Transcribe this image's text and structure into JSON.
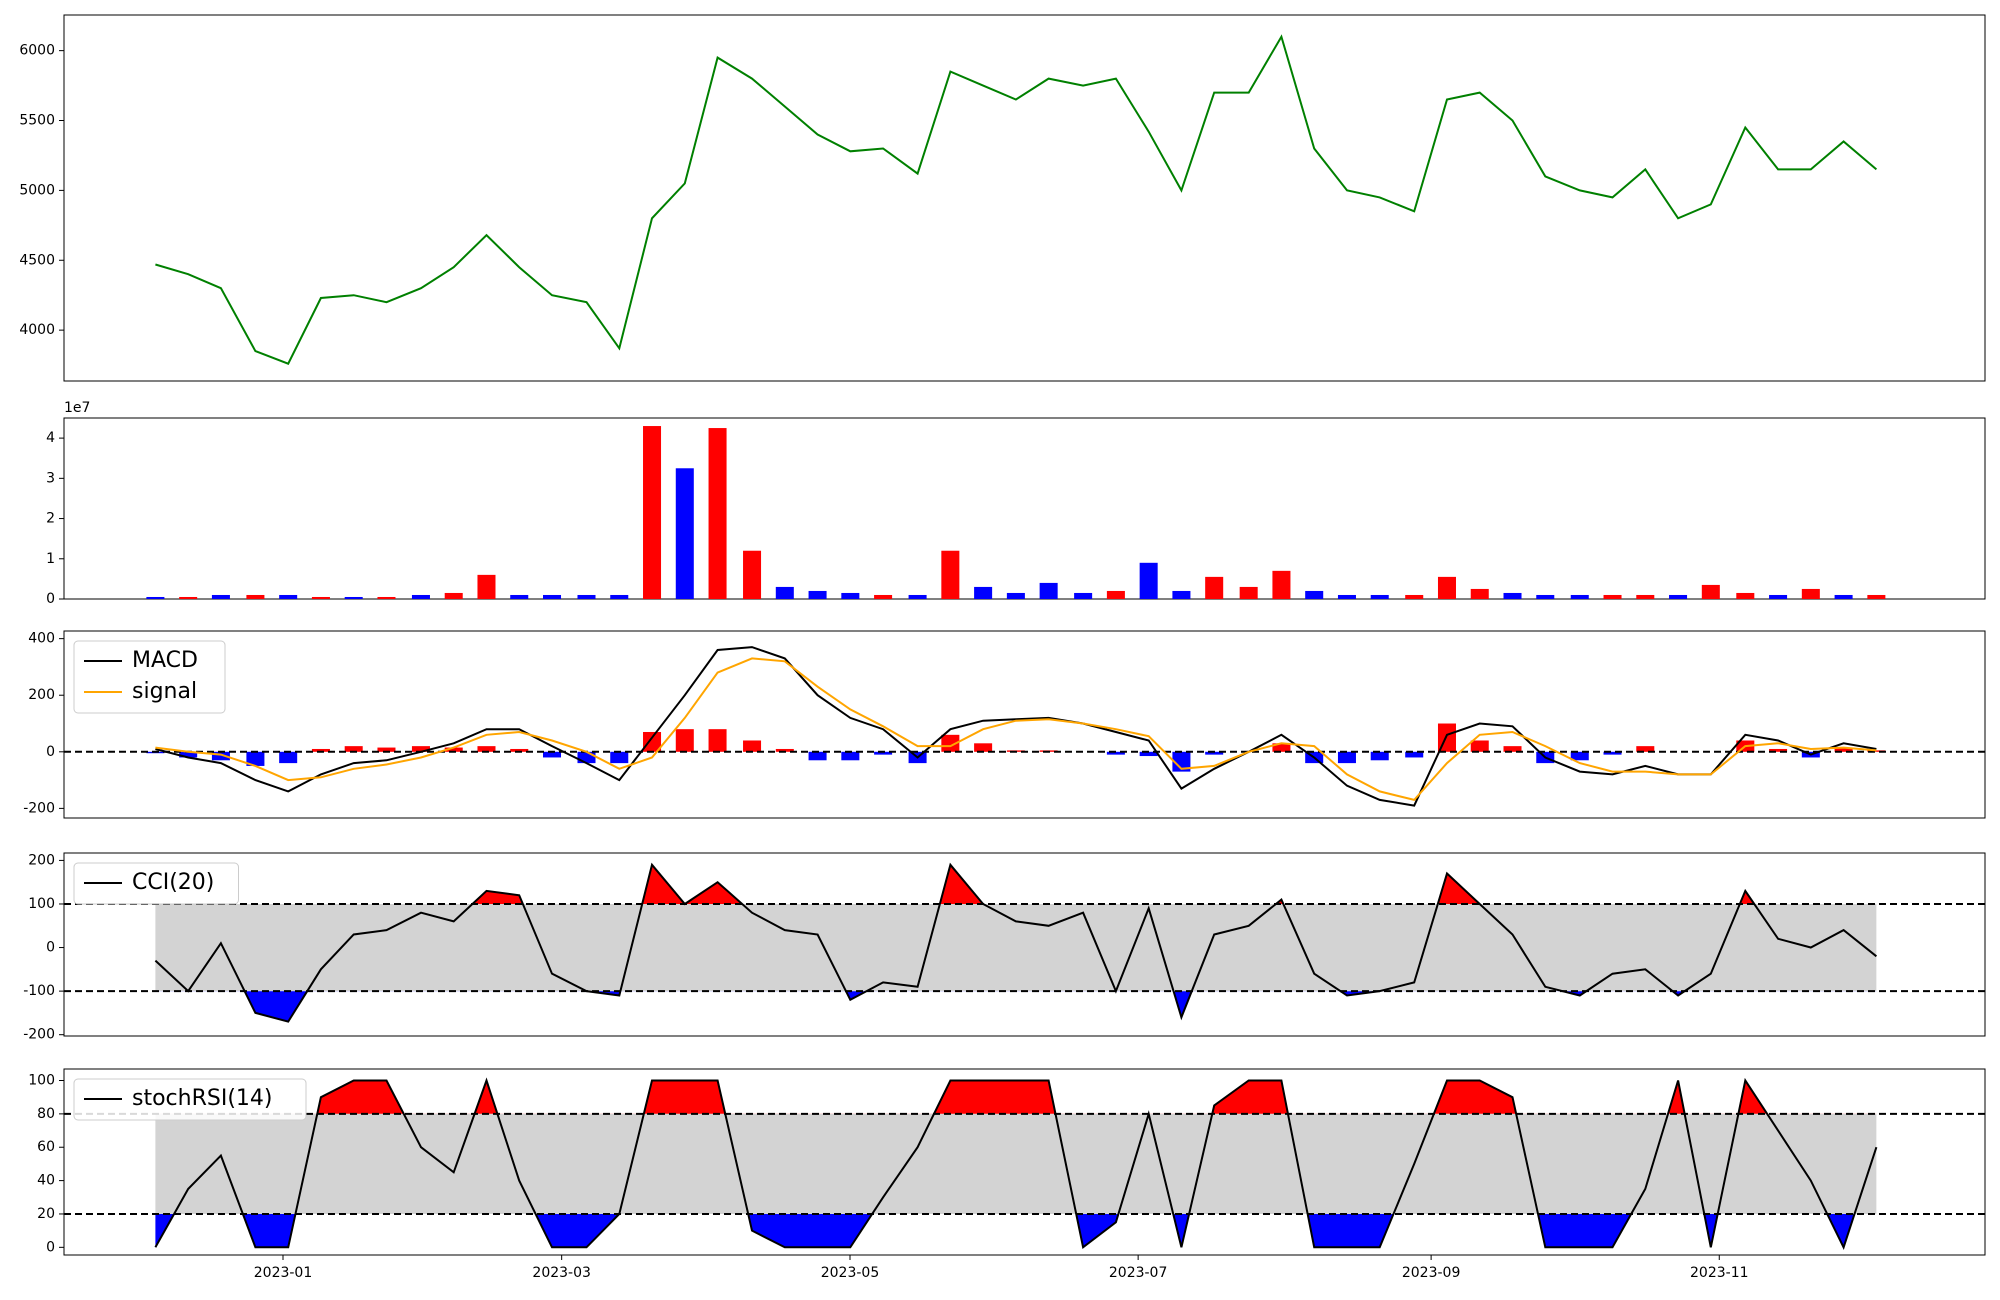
{
  "chart_data": [
    {
      "type": "line",
      "color": "green",
      "x": [
        2022.926,
        2022.945,
        2022.964,
        2022.984,
        2023.003,
        2023.022,
        2023.041,
        2023.06,
        2023.08,
        2023.099,
        2023.118,
        2023.137,
        2023.156,
        2023.176,
        2023.195,
        2023.214,
        2023.233,
        2023.252,
        2023.272,
        2023.291,
        2023.31,
        2023.329,
        2023.348,
        2023.368,
        2023.387,
        2023.406,
        2023.425,
        2023.444,
        2023.464,
        2023.483,
        2023.502,
        2023.521,
        2023.54,
        2023.56,
        2023.579,
        2023.598,
        2023.617,
        2023.636,
        2023.656,
        2023.675,
        2023.694,
        2023.713,
        2023.732,
        2023.752,
        2023.771,
        2023.79,
        2023.809,
        2023.828,
        2023.848,
        2023.867,
        2023.886,
        2023.905,
        2023.924
      ],
      "values": [
        4470,
        4400,
        4300,
        3850,
        3760,
        4230,
        4250,
        4200,
        4300,
        4450,
        4680,
        4450,
        4250,
        4200,
        3870,
        4800,
        5050,
        5950,
        5800,
        5600,
        5400,
        5280,
        5300,
        5120,
        5850,
        5750,
        5650,
        5800,
        5750,
        5800,
        5420,
        5000,
        5700,
        5700,
        6100,
        5300,
        5000,
        4950,
        4850,
        5650,
        5700,
        5500,
        5100,
        5000,
        4950,
        5150,
        4800,
        4900,
        5450,
        5150,
        5150,
        5350,
        5150
      ],
      "xlim": [
        2022.873,
        2023.987
      ],
      "ylim": [
        3636,
        6255
      ],
      "yticks": [
        4000,
        4500,
        5000,
        5500,
        6000
      ]
    },
    {
      "type": "bar",
      "offset_label": "1e7",
      "x": [
        2022.926,
        2022.945,
        2022.964,
        2022.984,
        2023.003,
        2023.022,
        2023.041,
        2023.06,
        2023.08,
        2023.099,
        2023.118,
        2023.137,
        2023.156,
        2023.176,
        2023.195,
        2023.214,
        2023.233,
        2023.252,
        2023.272,
        2023.291,
        2023.31,
        2023.329,
        2023.348,
        2023.368,
        2023.387,
        2023.406,
        2023.425,
        2023.444,
        2023.464,
        2023.483,
        2023.502,
        2023.521,
        2023.54,
        2023.56,
        2023.579,
        2023.598,
        2023.617,
        2023.636,
        2023.656,
        2023.675,
        2023.694,
        2023.713,
        2023.732,
        2023.752,
        2023.771,
        2023.79,
        2023.809,
        2023.828,
        2023.848,
        2023.867,
        2023.886,
        2023.905,
        2023.924
      ],
      "values": [
        0.05,
        0.05,
        0.1,
        0.1,
        0.1,
        0.05,
        0.05,
        0.05,
        0.1,
        0.15,
        0.6,
        0.1,
        0.1,
        0.1,
        0.1,
        4.3,
        3.25,
        4.25,
        1.2,
        0.3,
        0.2,
        0.15,
        0.1,
        0.1,
        1.2,
        0.3,
        0.15,
        0.4,
        0.15,
        0.2,
        0.9,
        0.2,
        0.55,
        0.3,
        0.7,
        0.2,
        0.1,
        0.1,
        0.1,
        0.55,
        0.25,
        0.15,
        0.1,
        0.1,
        0.1,
        0.1,
        0.1,
        0.35,
        0.15,
        0.1,
        0.25,
        0.1,
        0.1
      ],
      "colors": [
        "blue",
        "red",
        "blue",
        "red",
        "blue",
        "red",
        "blue",
        "red",
        "blue",
        "red",
        "red",
        "blue",
        "blue",
        "blue",
        "blue",
        "red",
        "blue",
        "red",
        "red",
        "blue",
        "blue",
        "blue",
        "red",
        "blue",
        "red",
        "blue",
        "blue",
        "blue",
        "blue",
        "red",
        "blue",
        "blue",
        "red",
        "red",
        "red",
        "blue",
        "blue",
        "blue",
        "red",
        "red",
        "red",
        "blue",
        "blue",
        "blue",
        "red",
        "red",
        "blue",
        "red",
        "red",
        "blue",
        "red",
        "blue",
        "red"
      ],
      "xlim": [
        2022.873,
        2023.987
      ],
      "ylim": [
        0,
        4.5
      ],
      "yticks": [
        0,
        1,
        2,
        3,
        4
      ]
    },
    {
      "type": "macd",
      "legend": "upper left",
      "x": [
        2022.926,
        2022.945,
        2022.964,
        2022.984,
        2023.003,
        2023.022,
        2023.041,
        2023.06,
        2023.08,
        2023.099,
        2023.118,
        2023.137,
        2023.156,
        2023.176,
        2023.195,
        2023.214,
        2023.233,
        2023.252,
        2023.272,
        2023.291,
        2023.31,
        2023.329,
        2023.348,
        2023.368,
        2023.387,
        2023.406,
        2023.425,
        2023.444,
        2023.464,
        2023.483,
        2023.502,
        2023.521,
        2023.54,
        2023.56,
        2023.579,
        2023.598,
        2023.617,
        2023.636,
        2023.656,
        2023.675,
        2023.694,
        2023.713,
        2023.732,
        2023.752,
        2023.771,
        2023.79,
        2023.809,
        2023.828,
        2023.848,
        2023.867,
        2023.886,
        2023.905,
        2023.924
      ],
      "series": [
        {
          "name": "MACD",
          "color": "black",
          "values": [
            10,
            -20,
            -40,
            -100,
            -140,
            -80,
            -40,
            -30,
            0,
            30,
            80,
            80,
            20,
            -40,
            -100,
            50,
            200,
            360,
            370,
            330,
            200,
            120,
            80,
            -20,
            80,
            110,
            115,
            120,
            100,
            70,
            40,
            -130,
            -60,
            0,
            60,
            -20,
            -120,
            -170,
            -190,
            60,
            100,
            90,
            -20,
            -70,
            -80,
            -50,
            -80,
            -80,
            60,
            40,
            -10,
            30,
            10
          ]
        },
        {
          "name": "signal",
          "color": "orange",
          "values": [
            15,
            0,
            -10,
            -50,
            -100,
            -90,
            -60,
            -45,
            -20,
            15,
            60,
            70,
            40,
            0,
            -60,
            -20,
            120,
            280,
            330,
            320,
            230,
            150,
            90,
            20,
            20,
            80,
            110,
            115,
            100,
            80,
            55,
            -60,
            -50,
            0,
            30,
            20,
            -80,
            -140,
            -170,
            -40,
            60,
            70,
            20,
            -40,
            -70,
            -70,
            -80,
            -80,
            20,
            30,
            10,
            15,
            5
          ]
        }
      ],
      "histogram": {
        "up_color": "red",
        "down_color": "blue",
        "values": [
          -5,
          -20,
          -30,
          -50,
          -40,
          10,
          20,
          15,
          20,
          15,
          20,
          10,
          -20,
          -40,
          -40,
          70,
          80,
          80,
          40,
          10,
          -30,
          -30,
          -10,
          -40,
          60,
          30,
          5,
          5,
          0,
          -10,
          -15,
          -70,
          -10,
          0,
          30,
          -40,
          -40,
          -30,
          -20,
          100,
          40,
          20,
          -40,
          -30,
          -10,
          20,
          0,
          0,
          40,
          10,
          -20,
          15,
          5
        ]
      },
      "hlines": [
        0
      ],
      "xlim": [
        2022.873,
        2023.987
      ],
      "ylim": [
        -234,
        427
      ],
      "yticks": [
        -200,
        0,
        200,
        400
      ]
    },
    {
      "type": "oscillator",
      "legend": "upper left",
      "band_color": "lightgray",
      "above_color": "red",
      "below_color": "blue",
      "x": [
        2022.926,
        2022.945,
        2022.964,
        2022.984,
        2023.003,
        2023.022,
        2023.041,
        2023.06,
        2023.08,
        2023.099,
        2023.118,
        2023.137,
        2023.156,
        2023.176,
        2023.195,
        2023.214,
        2023.233,
        2023.252,
        2023.272,
        2023.291,
        2023.31,
        2023.329,
        2023.348,
        2023.368,
        2023.387,
        2023.406,
        2023.425,
        2023.444,
        2023.464,
        2023.483,
        2023.502,
        2023.521,
        2023.54,
        2023.56,
        2023.579,
        2023.598,
        2023.617,
        2023.636,
        2023.656,
        2023.675,
        2023.694,
        2023.713,
        2023.732,
        2023.752,
        2023.771,
        2023.79,
        2023.809,
        2023.828,
        2023.848,
        2023.867,
        2023.886,
        2023.905,
        2023.924
      ],
      "series": [
        {
          "name": "CCI(20)",
          "color": "black",
          "values": [
            -30,
            -100,
            10,
            -150,
            -170,
            -50,
            30,
            40,
            80,
            60,
            130,
            120,
            -60,
            -100,
            -110,
            190,
            100,
            150,
            80,
            40,
            30,
            -120,
            -80,
            -90,
            190,
            100,
            60,
            50,
            80,
            -100,
            90,
            -160,
            30,
            50,
            110,
            -60,
            -110,
            -100,
            -80,
            170,
            100,
            30,
            -90,
            -110,
            -60,
            -50,
            -110,
            -60,
            130,
            20,
            0,
            40,
            -20
          ]
        }
      ],
      "hlines": [
        -100,
        100
      ],
      "xlim": [
        2022.873,
        2023.987
      ],
      "ylim": [
        -203,
        217
      ],
      "yticks": [
        -200,
        -100,
        0,
        100,
        200
      ]
    },
    {
      "type": "oscillator",
      "legend": "upper left",
      "band_color": "lightgray",
      "above_color": "red",
      "below_color": "blue",
      "x": [
        2022.926,
        2022.945,
        2022.964,
        2022.984,
        2023.003,
        2023.022,
        2023.041,
        2023.06,
        2023.08,
        2023.099,
        2023.118,
        2023.137,
        2023.156,
        2023.176,
        2023.195,
        2023.214,
        2023.233,
        2023.252,
        2023.272,
        2023.291,
        2023.31,
        2023.329,
        2023.348,
        2023.368,
        2023.387,
        2023.406,
        2023.425,
        2023.444,
        2023.464,
        2023.483,
        2023.502,
        2023.521,
        2023.54,
        2023.56,
        2023.579,
        2023.598,
        2023.617,
        2023.636,
        2023.656,
        2023.675,
        2023.694,
        2023.713,
        2023.732,
        2023.752,
        2023.771,
        2023.79,
        2023.809,
        2023.828,
        2023.848,
        2023.867,
        2023.886,
        2023.905,
        2023.924
      ],
      "series": [
        {
          "name": "stochRSI(14)",
          "color": "black",
          "values": [
            0,
            35,
            55,
            0,
            0,
            90,
            100,
            100,
            60,
            45,
            100,
            40,
            0,
            0,
            20,
            100,
            100,
            100,
            10,
            0,
            0,
            0,
            30,
            60,
            100,
            100,
            100,
            100,
            0,
            15,
            80,
            0,
            85,
            100,
            100,
            0,
            0,
            0,
            50,
            100,
            100,
            90,
            0,
            0,
            0,
            35,
            100,
            0,
            100,
            70,
            40,
            0,
            60
          ]
        }
      ],
      "hlines": [
        20,
        80
      ],
      "xlim": [
        2022.873,
        2023.987
      ],
      "ylim": [
        -4.6,
        106.9
      ],
      "yticks": [
        0,
        20,
        40,
        60,
        80,
        100
      ],
      "xticks": [
        {
          "value": 2023.0,
          "label": "2023-01"
        },
        {
          "value": 2023.1616,
          "label": "2023-03"
        },
        {
          "value": 2023.3288,
          "label": "2023-05"
        },
        {
          "value": 2023.4959,
          "label": "2023-07"
        },
        {
          "value": 2023.6658,
          "label": "2023-09"
        },
        {
          "value": 2023.8329,
          "label": "2023-11"
        }
      ]
    }
  ]
}
